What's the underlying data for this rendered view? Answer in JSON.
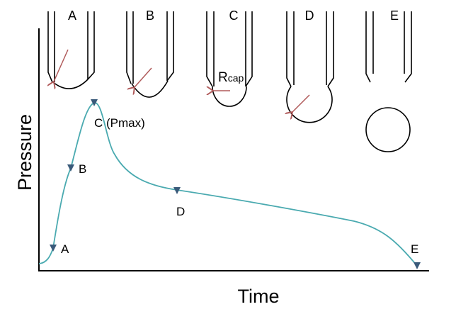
{
  "diagram": {
    "stage_labels": [
      "A",
      "B",
      "C",
      "D",
      "E"
    ],
    "rcap_label": "Rcap",
    "rcap_main": "R",
    "rcap_sub": "cap",
    "point_labels": {
      "A": "A",
      "B": "B",
      "C": "C (Pmax)",
      "D": "D",
      "E": "E"
    },
    "y_axis_label": "Pressure",
    "x_axis_label": "Time",
    "colors": {
      "curve": "#4aaab0",
      "marker": "#3a5a7a",
      "arrow": "#b05a5a",
      "line": "#000000"
    }
  }
}
